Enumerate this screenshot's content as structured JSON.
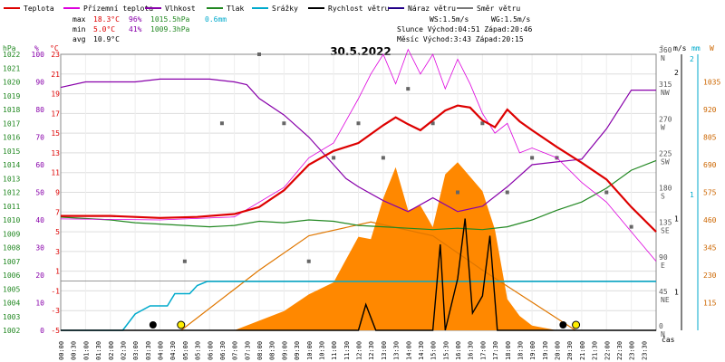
{
  "title": "30.5.2022",
  "legend": [
    {
      "label": "Teplota",
      "color": "#dd0000"
    },
    {
      "label": "Přízemní teplota",
      "color": "#dd00dd"
    },
    {
      "label": "Vlhkost",
      "color": "#8800aa"
    },
    {
      "label": "Tlak",
      "color": "#228822"
    },
    {
      "label": "Srážky",
      "color": "#00aacc"
    },
    {
      "label": "Rychlost větru",
      "color": "#000000"
    },
    {
      "label": "Náraz větru",
      "color": "#220088"
    },
    {
      "label": "Směr větru",
      "color": "#777777"
    }
  ],
  "stats": {
    "max_label": "max",
    "max_temp": "18.3°C",
    "max_hum": "96%",
    "max_press": "1015.5hPa",
    "max_rain": "0.6mm",
    "min_label": "min",
    "min_temp": "5.0°C",
    "min_hum": "41%",
    "min_press": "1009.3hPa",
    "avg_label": "avg",
    "avg_temp": "10.9°C",
    "ws": "WS:1.5m/s",
    "wg": "WG:1.5m/s",
    "sun": "Slunce Východ:04:51  Západ:20:46",
    "moon": "Měsíc  Východ:3:43   Západ:20:15"
  },
  "axes": {
    "hpa_unit": "hPa",
    "pct_unit": "%",
    "temp_unit": "°C",
    "hpa_ticks": [
      "1022",
      "1021",
      "1020",
      "1019",
      "1018",
      "1017",
      "1016",
      "1015",
      "1014",
      "1013",
      "1012",
      "1011",
      "1010",
      "1009",
      "1008",
      "1007",
      "1006",
      "1005",
      "1004",
      "1003",
      "1002"
    ],
    "pct_ticks": [
      "100",
      "90",
      "80",
      "70",
      "60",
      "50",
      "40",
      "30",
      "20",
      "10",
      "0"
    ],
    "temp_ticks": [
      "23",
      "21",
      "19",
      "17",
      "15",
      "13",
      "11",
      "9",
      "7",
      "5",
      "3",
      "1",
      "-1",
      "-3",
      "-5"
    ],
    "dir_unit": "°",
    "dir_ticks": [
      {
        "deg": "360",
        "lbl": "N"
      },
      {
        "deg": "315",
        "lbl": "NW"
      },
      {
        "deg": "270",
        "lbl": "W"
      },
      {
        "deg": "225",
        "lbl": "SW"
      },
      {
        "deg": "180",
        "lbl": "S"
      },
      {
        "deg": "135",
        "lbl": "SE"
      },
      {
        "deg": "90",
        "lbl": "E"
      },
      {
        "deg": "45",
        "lbl": "NE"
      },
      {
        "deg": "0",
        "lbl": "N"
      }
    ],
    "ms_unit": "m/s",
    "ms_ticks": [
      "2",
      "1",
      "1"
    ],
    "mm_unit": "mm",
    "mm_ticks": [
      "2",
      "1"
    ],
    "w_unit": "W",
    "w_ticks": [
      "1035",
      "920",
      "805",
      "690",
      "575",
      "460",
      "345",
      "230",
      "115"
    ],
    "time_label": "čas",
    "time_ticks": [
      "00:00",
      "00:30",
      "01:00",
      "01:30",
      "02:00",
      "02:30",
      "03:00",
      "03:30",
      "04:00",
      "04:30",
      "05:00",
      "05:30",
      "06:00",
      "06:30",
      "07:00",
      "07:30",
      "08:00",
      "08:30",
      "09:00",
      "09:30",
      "10:00",
      "10:30",
      "11:00",
      "11:30",
      "12:00",
      "12:30",
      "13:00",
      "13:30",
      "14:00",
      "14:30",
      "15:00",
      "15:30",
      "16:00",
      "16:30",
      "17:00",
      "17:30",
      "18:00",
      "18:30",
      "19:00",
      "19:30",
      "20:00",
      "20:30",
      "21:00",
      "21:30",
      "22:00",
      "22:30",
      "23:00",
      "23:30"
    ]
  },
  "chart_data": {
    "type": "line",
    "x_unit": "hours",
    "temperature": [
      [
        0,
        6.6
      ],
      [
        2,
        6.6
      ],
      [
        4,
        6.4
      ],
      [
        5.5,
        6.5
      ],
      [
        7,
        6.8
      ],
      [
        8,
        7.5
      ],
      [
        9,
        9.2
      ],
      [
        10,
        11.8
      ],
      [
        11,
        13.2
      ],
      [
        11.5,
        13.6
      ],
      [
        12,
        14.0
      ],
      [
        13,
        15.8
      ],
      [
        13.5,
        16.6
      ],
      [
        14,
        15.9
      ],
      [
        14.5,
        15.3
      ],
      [
        15,
        16.3
      ],
      [
        15.5,
        17.3
      ],
      [
        16,
        17.8
      ],
      [
        16.5,
        17.6
      ],
      [
        17,
        16.3
      ],
      [
        17.5,
        15.6
      ],
      [
        18,
        17.4
      ],
      [
        18.5,
        16.2
      ],
      [
        19,
        15.3
      ],
      [
        20,
        13.6
      ],
      [
        21,
        12.0
      ],
      [
        22,
        10.3
      ],
      [
        23,
        7.5
      ],
      [
        24,
        5.0
      ]
    ],
    "ground_temperature": [
      [
        0,
        6.3
      ],
      [
        4,
        6.2
      ],
      [
        7,
        6.5
      ],
      [
        9,
        9.5
      ],
      [
        10,
        12.5
      ],
      [
        11,
        14.0
      ],
      [
        12,
        18.5
      ],
      [
        12.5,
        21.0
      ],
      [
        13,
        23.0
      ],
      [
        13.5,
        20.0
      ],
      [
        14,
        23.5
      ],
      [
        14.5,
        21.0
      ],
      [
        15,
        23.0
      ],
      [
        15.5,
        19.5
      ],
      [
        16,
        22.5
      ],
      [
        16.5,
        20.0
      ],
      [
        17,
        17.0
      ],
      [
        17.5,
        15.0
      ],
      [
        18,
        16.0
      ],
      [
        18.5,
        13.0
      ],
      [
        19,
        13.5
      ],
      [
        20,
        12.5
      ],
      [
        21,
        10.0
      ],
      [
        22,
        8.0
      ],
      [
        23,
        5.0
      ],
      [
        24,
        2.0
      ]
    ],
    "humidity": [
      [
        0,
        88
      ],
      [
        1,
        90
      ],
      [
        2,
        90
      ],
      [
        3,
        90
      ],
      [
        4,
        91
      ],
      [
        5,
        91
      ],
      [
        6,
        91
      ],
      [
        7,
        90
      ],
      [
        7.5,
        89
      ],
      [
        8,
        84
      ],
      [
        9,
        78
      ],
      [
        10,
        70
      ],
      [
        11,
        60
      ],
      [
        11.5,
        55
      ],
      [
        12,
        52
      ],
      [
        13,
        47
      ],
      [
        14,
        43
      ],
      [
        15,
        48
      ],
      [
        16,
        43
      ],
      [
        17,
        45
      ],
      [
        18,
        52
      ],
      [
        19,
        60
      ],
      [
        20,
        61
      ],
      [
        21,
        62
      ],
      [
        22,
        73
      ],
      [
        23,
        87
      ],
      [
        24,
        87
      ]
    ],
    "pressure": [
      [
        0,
        1010.2
      ],
      [
        2,
        1010.0
      ],
      [
        3,
        1009.8
      ],
      [
        5,
        1009.6
      ],
      [
        6,
        1009.5
      ],
      [
        7,
        1009.6
      ],
      [
        8,
        1009.9
      ],
      [
        9,
        1009.8
      ],
      [
        10,
        1010.0
      ],
      [
        11,
        1009.9
      ],
      [
        12,
        1009.6
      ],
      [
        13,
        1009.5
      ],
      [
        14,
        1009.4
      ],
      [
        15,
        1009.3
      ],
      [
        16,
        1009.4
      ],
      [
        17,
        1009.3
      ],
      [
        18,
        1009.5
      ],
      [
        19,
        1010.0
      ],
      [
        20,
        1010.7
      ],
      [
        21,
        1011.3
      ],
      [
        22,
        1012.3
      ],
      [
        23,
        1013.6
      ],
      [
        24,
        1014.3
      ]
    ],
    "rain_total": [
      [
        0,
        0
      ],
      [
        2.5,
        0
      ],
      [
        3,
        0.2
      ],
      [
        3.6,
        0.3
      ],
      [
        4.3,
        0.3
      ],
      [
        4.6,
        0.45
      ],
      [
        5.2,
        0.45
      ],
      [
        5.5,
        0.55
      ],
      [
        5.9,
        0.6
      ],
      [
        24,
        0.6
      ]
    ],
    "wind_speed": [
      [
        0,
        0
      ],
      [
        12,
        0
      ],
      [
        12.3,
        0.3
      ],
      [
        12.7,
        0.0
      ],
      [
        15,
        0
      ],
      [
        15.3,
        1.0
      ],
      [
        15.5,
        0.0
      ],
      [
        16,
        0.6
      ],
      [
        16.3,
        1.3
      ],
      [
        16.6,
        0.2
      ],
      [
        17,
        0.4
      ],
      [
        17.3,
        1.1
      ],
      [
        17.6,
        0.0
      ],
      [
        24,
        0
      ]
    ],
    "sun_elevation": [
      [
        4.85,
        0
      ],
      [
        8,
        35
      ],
      [
        10,
        55
      ],
      [
        12.5,
        63
      ],
      [
        15,
        55
      ],
      [
        17,
        35
      ],
      [
        20.75,
        0
      ]
    ],
    "solar_radiation": [
      [
        7,
        0
      ],
      [
        8,
        40
      ],
      [
        9,
        80
      ],
      [
        10,
        150
      ],
      [
        11,
        200
      ],
      [
        12,
        390
      ],
      [
        12.5,
        380
      ],
      [
        13,
        550
      ],
      [
        13.5,
        680
      ],
      [
        14,
        500
      ],
      [
        14.5,
        520
      ],
      [
        15,
        430
      ],
      [
        15.5,
        650
      ],
      [
        16,
        700
      ],
      [
        16.5,
        640
      ],
      [
        17,
        580
      ],
      [
        17.5,
        420
      ],
      [
        18,
        130
      ],
      [
        18.5,
        60
      ],
      [
        19,
        20
      ],
      [
        20,
        0
      ]
    ],
    "wind_direction": [
      [
        5,
        90
      ],
      [
        6.5,
        270
      ],
      [
        8,
        360
      ],
      [
        9,
        270
      ],
      [
        10,
        90
      ],
      [
        11,
        225
      ],
      [
        12,
        270
      ],
      [
        13,
        225
      ],
      [
        14,
        315
      ],
      [
        15,
        270
      ],
      [
        16,
        180
      ],
      [
        17,
        270
      ],
      [
        18,
        180
      ],
      [
        19,
        225
      ],
      [
        20,
        225
      ],
      [
        22,
        180
      ],
      [
        23,
        135
      ]
    ],
    "ylim_temp": [
      -5,
      23
    ],
    "ylim_hum": [
      0,
      100
    ],
    "ylim_press": [
      1002,
      1022
    ]
  }
}
